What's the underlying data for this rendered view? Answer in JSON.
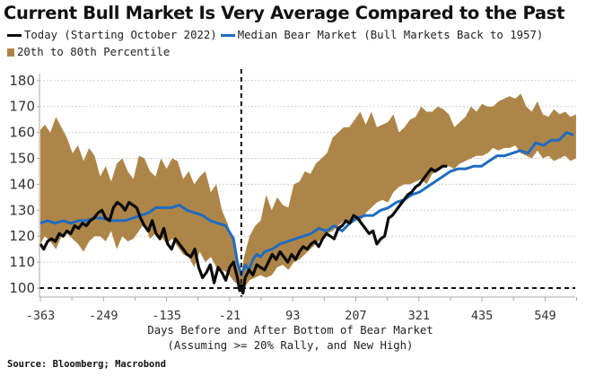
{
  "chart_data": {
    "type": "line",
    "title": "Current Bull Market Is Very Average Compared to the Past",
    "xlabel": "Days Before and After Bottom of Bear Market",
    "xlabel_sub": "(Assuming >= 20% Rally, and New High)",
    "ylabel": "",
    "xlim": [
      -365,
      610
    ],
    "ylim": [
      97,
      183
    ],
    "x_ticks": [
      -363,
      -249,
      -135,
      -21,
      93,
      207,
      321,
      435,
      549
    ],
    "x_tick_labels": [
      "-363",
      "-249",
      "-135",
      "-21",
      "93",
      "207",
      "321",
      "435",
      "549"
    ],
    "y_ticks": [
      100,
      110,
      120,
      130,
      140,
      150,
      160,
      170,
      180
    ],
    "y_tick_labels": [
      "100",
      "110",
      "120",
      "130",
      "140",
      "150",
      "160",
      "170",
      "180"
    ],
    "grid": true,
    "legend_position": "top",
    "reference_lines": [
      {
        "orientation": "horizontal",
        "value": 100,
        "style": "dashed"
      },
      {
        "orientation": "vertical",
        "value": 0,
        "style": "dashed"
      }
    ],
    "band": {
      "name": "20th to 80th Percentile",
      "color": "#ae8548",
      "x": [
        -363,
        -355,
        -345,
        -335,
        -325,
        -315,
        -305,
        -295,
        -285,
        -275,
        -265,
        -255,
        -245,
        -235,
        -225,
        -215,
        -205,
        -195,
        -185,
        -175,
        -165,
        -155,
        -145,
        -135,
        -125,
        -115,
        -105,
        -95,
        -85,
        -75,
        -65,
        -55,
        -45,
        -35,
        -25,
        -15,
        -5,
        0,
        5,
        15,
        25,
        35,
        45,
        55,
        65,
        75,
        85,
        95,
        105,
        115,
        125,
        135,
        145,
        155,
        165,
        175,
        185,
        195,
        205,
        215,
        225,
        235,
        245,
        255,
        265,
        275,
        285,
        295,
        305,
        315,
        325,
        335,
        345,
        355,
        365,
        375,
        385,
        395,
        405,
        415,
        425,
        435,
        445,
        455,
        465,
        475,
        485,
        495,
        505,
        515,
        525,
        535,
        545,
        555,
        565,
        575,
        585,
        595,
        605
      ],
      "upper": [
        161,
        163,
        160,
        166,
        162,
        158,
        152,
        155,
        149,
        154,
        151,
        143,
        147,
        141,
        148,
        150,
        145,
        142,
        151,
        150,
        145,
        143,
        150,
        146,
        150,
        149,
        142,
        145,
        140,
        143,
        145,
        137,
        140,
        130,
        125,
        118,
        108,
        105,
        112,
        120,
        124,
        126,
        136,
        130,
        135,
        132,
        131,
        140,
        141,
        145,
        144,
        148,
        150,
        152,
        158,
        160,
        162,
        162,
        165,
        168,
        163,
        168,
        162,
        163,
        164,
        167,
        160,
        162,
        165,
        166,
        170,
        168,
        168,
        170,
        169,
        167,
        162,
        164,
        166,
        170,
        168,
        171,
        170,
        170,
        172,
        173,
        174,
        173,
        175,
        170,
        168,
        172,
        167,
        166,
        169,
        167,
        168,
        166,
        167
      ],
      "lower": [
        117,
        120,
        118,
        115,
        120,
        121,
        119,
        117,
        114,
        118,
        120,
        120,
        118,
        122,
        115,
        120,
        118,
        119,
        122,
        125,
        119,
        121,
        120,
        117,
        119,
        116,
        113,
        112,
        108,
        114,
        110,
        112,
        108,
        107,
        106,
        103,
        101,
        100,
        100,
        103,
        104,
        105,
        104,
        105,
        108,
        109,
        107,
        110,
        111,
        113,
        115,
        117,
        119,
        121,
        122,
        124,
        126,
        124,
        127,
        126,
        129,
        131,
        133,
        134,
        133,
        137,
        139,
        140,
        140,
        141,
        142,
        140,
        144,
        145,
        147,
        147,
        146,
        148,
        149,
        150,
        151,
        151,
        152,
        154,
        153,
        154,
        154,
        155,
        152,
        151,
        150,
        153,
        150,
        151,
        149,
        150,
        151,
        149,
        150
      ]
    },
    "series": [
      {
        "name": "Today (Starting October 2022)",
        "color": "#0a0a0a",
        "x": [
          -363,
          -357,
          -350,
          -343,
          -336,
          -329,
          -322,
          -315,
          -308,
          -301,
          -294,
          -287,
          -280,
          -273,
          -266,
          -259,
          -252,
          -245,
          -238,
          -231,
          -224,
          -217,
          -210,
          -203,
          -196,
          -189,
          -182,
          -175,
          -168,
          -161,
          -154,
          -147,
          -140,
          -133,
          -126,
          -119,
          -112,
          -105,
          -98,
          -91,
          -84,
          -77,
          -70,
          -63,
          -56,
          -49,
          -42,
          -35,
          -28,
          -21,
          -14,
          -7,
          -3,
          0,
          3,
          7,
          14,
          21,
          28,
          35,
          42,
          49,
          56,
          63,
          70,
          77,
          84,
          91,
          98,
          105,
          112,
          119,
          126,
          133,
          140,
          147,
          154,
          161,
          168,
          175,
          182,
          189,
          196,
          203,
          210,
          217,
          224,
          231,
          238,
          245,
          252,
          259,
          266,
          273,
          280,
          287,
          294,
          301,
          308,
          315,
          322,
          329,
          336,
          343,
          350,
          357,
          364,
          372
        ],
        "values": [
          117,
          115,
          118,
          119,
          118,
          121,
          120,
          122,
          121,
          124,
          123,
          125,
          124,
          126,
          127,
          129,
          130,
          127,
          126,
          131,
          133,
          132,
          130,
          133,
          132,
          131,
          127,
          124,
          122,
          126,
          121,
          119,
          123,
          117,
          115,
          119,
          117,
          115,
          113,
          112,
          115,
          108,
          104,
          106,
          109,
          102,
          108,
          106,
          103,
          108,
          110,
          104,
          99,
          101,
          98,
          104,
          107,
          105,
          109,
          108,
          107,
          110,
          113,
          111,
          114,
          112,
          110,
          113,
          111,
          114,
          116,
          115,
          117,
          118,
          116,
          119,
          121,
          120,
          119,
          123,
          124,
          126,
          125,
          128,
          127,
          125,
          123,
          121,
          122,
          117,
          119,
          120,
          127,
          128,
          130,
          132,
          134,
          136,
          137,
          139,
          140,
          142,
          144,
          146,
          145,
          146,
          147,
          147
        ],
        "line_width": 3
      },
      {
        "name": "Median Bear Market (Bull Markets Back to 1957)",
        "color": "#1f6cc0",
        "x": [
          -363,
          -350,
          -336,
          -322,
          -308,
          -294,
          -280,
          -266,
          -252,
          -238,
          -224,
          -210,
          -196,
          -182,
          -168,
          -154,
          -140,
          -126,
          -112,
          -98,
          -84,
          -70,
          -56,
          -42,
          -28,
          -14,
          -7,
          0,
          7,
          14,
          21,
          28,
          35,
          42,
          56,
          70,
          84,
          98,
          112,
          126,
          140,
          154,
          168,
          182,
          196,
          210,
          224,
          238,
          252,
          266,
          280,
          294,
          308,
          322,
          336,
          350,
          364,
          378,
          392,
          406,
          420,
          434,
          448,
          462,
          476,
          490,
          504,
          518,
          532,
          546,
          560,
          574,
          588,
          600
        ],
        "values": [
          125,
          126,
          125,
          126,
          125,
          126,
          126,
          127,
          127,
          126,
          126,
          126,
          127,
          128,
          129,
          131,
          131,
          131,
          132,
          130,
          129,
          128,
          126,
          125,
          124,
          119,
          110,
          105,
          109,
          107,
          111,
          113,
          112,
          114,
          115,
          117,
          118,
          119,
          120,
          121,
          123,
          122,
          124,
          122,
          125,
          127,
          128,
          128,
          130,
          131,
          133,
          134,
          136,
          137,
          139,
          141,
          143,
          145,
          146,
          146,
          147,
          147,
          149,
          151,
          151,
          152,
          153,
          152,
          156,
          155,
          157,
          157,
          160,
          159
        ]
      }
    ]
  },
  "header": {
    "title": "Current Bull Market Is Very Average Compared to the Past"
  },
  "legend": {
    "items": [
      {
        "label": "Today (Starting October 2022)",
        "color": "#0a0a0a",
        "kind": "line"
      },
      {
        "label": "Median Bear Market (Bull Markets Back to 1957)",
        "color": "#1f6cc0",
        "kind": "line"
      },
      {
        "label": "20th to 80th Percentile",
        "color": "#ae8548",
        "kind": "box"
      }
    ]
  },
  "footer": {
    "source": "Source: Bloomberg; Macrobond"
  }
}
